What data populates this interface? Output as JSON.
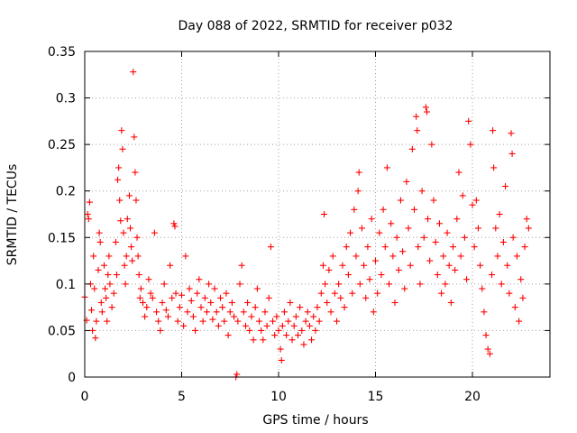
{
  "chart_data": {
    "type": "scatter",
    "title": "Day 088 of 2022, SRMTID for receiver p032",
    "xlabel": "GPS time / hours",
    "ylabel": "SRMTID / TECUs",
    "xlim": [
      0,
      24
    ],
    "ylim": [
      0,
      0.35
    ],
    "xticks": [
      0,
      5,
      10,
      15,
      20
    ],
    "xtick_labels": [
      "0",
      "5",
      "10",
      "15",
      "20"
    ],
    "yticks": [
      0,
      0.05,
      0.1,
      0.15,
      0.2,
      0.25,
      0.3,
      0.35
    ],
    "ytick_labels": [
      "0",
      "0.05",
      "0.1",
      "0.15",
      "0.2",
      "0.25",
      "0.3",
      "0.35"
    ],
    "grid": true,
    "marker": "+",
    "color": "#ff0000",
    "series": [
      {
        "name": "SRMTID",
        "points": [
          [
            0.0,
            0.086
          ],
          [
            0.1,
            0.061
          ],
          [
            0.15,
            0.175
          ],
          [
            0.2,
            0.17
          ],
          [
            0.25,
            0.188
          ],
          [
            0.3,
            0.1
          ],
          [
            0.35,
            0.072
          ],
          [
            0.4,
            0.05
          ],
          [
            0.45,
            0.13
          ],
          [
            0.5,
            0.095
          ],
          [
            0.55,
            0.042
          ],
          [
            0.6,
            0.06
          ],
          [
            0.7,
            0.115
          ],
          [
            0.75,
            0.155
          ],
          [
            0.8,
            0.145
          ],
          [
            0.85,
            0.08
          ],
          [
            0.9,
            0.07
          ],
          [
            1.0,
            0.12
          ],
          [
            1.05,
            0.095
          ],
          [
            1.1,
            0.085
          ],
          [
            1.15,
            0.06
          ],
          [
            1.2,
            0.11
          ],
          [
            1.25,
            0.13
          ],
          [
            1.3,
            0.1
          ],
          [
            1.4,
            0.075
          ],
          [
            1.5,
            0.09
          ],
          [
            1.6,
            0.145
          ],
          [
            1.65,
            0.11
          ],
          [
            1.7,
            0.212
          ],
          [
            1.75,
            0.225
          ],
          [
            1.8,
            0.19
          ],
          [
            1.85,
            0.168
          ],
          [
            1.9,
            0.265
          ],
          [
            1.95,
            0.245
          ],
          [
            2.0,
            0.155
          ],
          [
            2.05,
            0.12
          ],
          [
            2.1,
            0.1
          ],
          [
            2.15,
            0.13
          ],
          [
            2.2,
            0.17
          ],
          [
            2.3,
            0.195
          ],
          [
            2.35,
            0.16
          ],
          [
            2.4,
            0.14
          ],
          [
            2.45,
            0.125
          ],
          [
            2.5,
            0.328
          ],
          [
            2.55,
            0.258
          ],
          [
            2.6,
            0.22
          ],
          [
            2.65,
            0.19
          ],
          [
            2.7,
            0.15
          ],
          [
            2.75,
            0.13
          ],
          [
            2.8,
            0.11
          ],
          [
            2.85,
            0.085
          ],
          [
            2.9,
            0.095
          ],
          [
            3.0,
            0.08
          ],
          [
            3.1,
            0.065
          ],
          [
            3.2,
            0.075
          ],
          [
            3.3,
            0.105
          ],
          [
            3.4,
            0.09
          ],
          [
            3.5,
            0.085
          ],
          [
            3.6,
            0.155
          ],
          [
            3.7,
            0.07
          ],
          [
            3.8,
            0.06
          ],
          [
            3.9,
            0.05
          ],
          [
            4.0,
            0.08
          ],
          [
            4.1,
            0.1
          ],
          [
            4.2,
            0.072
          ],
          [
            4.3,
            0.065
          ],
          [
            4.4,
            0.12
          ],
          [
            4.5,
            0.085
          ],
          [
            4.6,
            0.165
          ],
          [
            4.65,
            0.162
          ],
          [
            4.7,
            0.09
          ],
          [
            4.8,
            0.06
          ],
          [
            4.9,
            0.075
          ],
          [
            5.0,
            0.088
          ],
          [
            5.1,
            0.055
          ],
          [
            5.2,
            0.13
          ],
          [
            5.3,
            0.07
          ],
          [
            5.4,
            0.095
          ],
          [
            5.5,
            0.082
          ],
          [
            5.6,
            0.065
          ],
          [
            5.7,
            0.05
          ],
          [
            5.8,
            0.09
          ],
          [
            5.9,
            0.105
          ],
          [
            6.0,
            0.075
          ],
          [
            6.1,
            0.06
          ],
          [
            6.2,
            0.085
          ],
          [
            6.3,
            0.07
          ],
          [
            6.4,
            0.1
          ],
          [
            6.5,
            0.08
          ],
          [
            6.6,
            0.062
          ],
          [
            6.7,
            0.095
          ],
          [
            6.8,
            0.07
          ],
          [
            6.9,
            0.055
          ],
          [
            7.0,
            0.085
          ],
          [
            7.1,
            0.075
          ],
          [
            7.2,
            0.06
          ],
          [
            7.3,
            0.09
          ],
          [
            7.4,
            0.045
          ],
          [
            7.5,
            0.07
          ],
          [
            7.6,
            0.08
          ],
          [
            7.7,
            0.065
          ],
          [
            7.8,
            0.0
          ],
          [
            7.85,
            0.003
          ],
          [
            7.9,
            0.06
          ],
          [
            8.0,
            0.1
          ],
          [
            8.1,
            0.12
          ],
          [
            8.2,
            0.07
          ],
          [
            8.3,
            0.055
          ],
          [
            8.4,
            0.08
          ],
          [
            8.5,
            0.05
          ],
          [
            8.6,
            0.065
          ],
          [
            8.7,
            0.04
          ],
          [
            8.8,
            0.075
          ],
          [
            8.9,
            0.095
          ],
          [
            9.0,
            0.06
          ],
          [
            9.1,
            0.05
          ],
          [
            9.2,
            0.04
          ],
          [
            9.3,
            0.07
          ],
          [
            9.4,
            0.055
          ],
          [
            9.5,
            0.085
          ],
          [
            9.6,
            0.14
          ],
          [
            9.7,
            0.06
          ],
          [
            9.8,
            0.045
          ],
          [
            9.9,
            0.065
          ],
          [
            10.0,
            0.05
          ],
          [
            10.1,
            0.03
          ],
          [
            10.15,
            0.018
          ],
          [
            10.2,
            0.055
          ],
          [
            10.3,
            0.07
          ],
          [
            10.4,
            0.045
          ],
          [
            10.5,
            0.06
          ],
          [
            10.6,
            0.08
          ],
          [
            10.7,
            0.04
          ],
          [
            10.8,
            0.055
          ],
          [
            10.9,
            0.065
          ],
          [
            11.0,
            0.045
          ],
          [
            11.1,
            0.075
          ],
          [
            11.2,
            0.05
          ],
          [
            11.3,
            0.035
          ],
          [
            11.4,
            0.06
          ],
          [
            11.5,
            0.07
          ],
          [
            11.6,
            0.055
          ],
          [
            11.7,
            0.04
          ],
          [
            11.8,
            0.065
          ],
          [
            11.9,
            0.05
          ],
          [
            12.0,
            0.075
          ],
          [
            12.1,
            0.06
          ],
          [
            12.2,
            0.09
          ],
          [
            12.3,
            0.12
          ],
          [
            12.35,
            0.175
          ],
          [
            12.4,
            0.1
          ],
          [
            12.5,
            0.08
          ],
          [
            12.6,
            0.115
          ],
          [
            12.7,
            0.07
          ],
          [
            12.8,
            0.13
          ],
          [
            12.9,
            0.09
          ],
          [
            13.0,
            0.06
          ],
          [
            13.1,
            0.1
          ],
          [
            13.2,
            0.085
          ],
          [
            13.3,
            0.12
          ],
          [
            13.4,
            0.075
          ],
          [
            13.5,
            0.14
          ],
          [
            13.6,
            0.11
          ],
          [
            13.7,
            0.155
          ],
          [
            13.8,
            0.09
          ],
          [
            13.9,
            0.18
          ],
          [
            14.0,
            0.13
          ],
          [
            14.1,
            0.2
          ],
          [
            14.15,
            0.22
          ],
          [
            14.2,
            0.1
          ],
          [
            14.3,
            0.16
          ],
          [
            14.4,
            0.12
          ],
          [
            14.5,
            0.085
          ],
          [
            14.6,
            0.14
          ],
          [
            14.7,
            0.105
          ],
          [
            14.8,
            0.17
          ],
          [
            14.9,
            0.07
          ],
          [
            15.0,
            0.125
          ],
          [
            15.1,
            0.09
          ],
          [
            15.2,
            0.155
          ],
          [
            15.3,
            0.11
          ],
          [
            15.4,
            0.18
          ],
          [
            15.5,
            0.14
          ],
          [
            15.6,
            0.225
          ],
          [
            15.7,
            0.1
          ],
          [
            15.8,
            0.165
          ],
          [
            15.9,
            0.13
          ],
          [
            16.0,
            0.08
          ],
          [
            16.1,
            0.15
          ],
          [
            16.2,
            0.115
          ],
          [
            16.3,
            0.19
          ],
          [
            16.4,
            0.135
          ],
          [
            16.5,
            0.095
          ],
          [
            16.6,
            0.21
          ],
          [
            16.7,
            0.16
          ],
          [
            16.8,
            0.12
          ],
          [
            16.9,
            0.245
          ],
          [
            17.0,
            0.18
          ],
          [
            17.1,
            0.28
          ],
          [
            17.15,
            0.265
          ],
          [
            17.2,
            0.14
          ],
          [
            17.3,
            0.1
          ],
          [
            17.4,
            0.2
          ],
          [
            17.5,
            0.15
          ],
          [
            17.6,
            0.29
          ],
          [
            17.65,
            0.285
          ],
          [
            17.7,
            0.17
          ],
          [
            17.8,
            0.125
          ],
          [
            17.9,
            0.25
          ],
          [
            18.0,
            0.19
          ],
          [
            18.1,
            0.145
          ],
          [
            18.2,
            0.11
          ],
          [
            18.3,
            0.165
          ],
          [
            18.4,
            0.09
          ],
          [
            18.5,
            0.13
          ],
          [
            18.6,
            0.1
          ],
          [
            18.7,
            0.155
          ],
          [
            18.8,
            0.12
          ],
          [
            18.9,
            0.08
          ],
          [
            19.0,
            0.14
          ],
          [
            19.1,
            0.115
          ],
          [
            19.2,
            0.17
          ],
          [
            19.3,
            0.22
          ],
          [
            19.4,
            0.13
          ],
          [
            19.5,
            0.195
          ],
          [
            19.6,
            0.15
          ],
          [
            19.7,
            0.105
          ],
          [
            19.8,
            0.275
          ],
          [
            19.9,
            0.25
          ],
          [
            20.0,
            0.185
          ],
          [
            20.1,
            0.14
          ],
          [
            20.2,
            0.19
          ],
          [
            20.3,
            0.16
          ],
          [
            20.4,
            0.12
          ],
          [
            20.5,
            0.095
          ],
          [
            20.6,
            0.07
          ],
          [
            20.7,
            0.045
          ],
          [
            20.8,
            0.03
          ],
          [
            20.9,
            0.025
          ],
          [
            21.0,
            0.11
          ],
          [
            21.05,
            0.265
          ],
          [
            21.1,
            0.225
          ],
          [
            21.2,
            0.16
          ],
          [
            21.3,
            0.13
          ],
          [
            21.4,
            0.175
          ],
          [
            21.5,
            0.1
          ],
          [
            21.6,
            0.145
          ],
          [
            21.7,
            0.205
          ],
          [
            21.8,
            0.12
          ],
          [
            21.9,
            0.09
          ],
          [
            22.0,
            0.262
          ],
          [
            22.05,
            0.24
          ],
          [
            22.1,
            0.15
          ],
          [
            22.2,
            0.075
          ],
          [
            22.3,
            0.13
          ],
          [
            22.4,
            0.06
          ],
          [
            22.5,
            0.105
          ],
          [
            22.6,
            0.085
          ],
          [
            22.7,
            0.14
          ],
          [
            22.8,
            0.17
          ],
          [
            22.9,
            0.16
          ]
        ]
      }
    ]
  }
}
